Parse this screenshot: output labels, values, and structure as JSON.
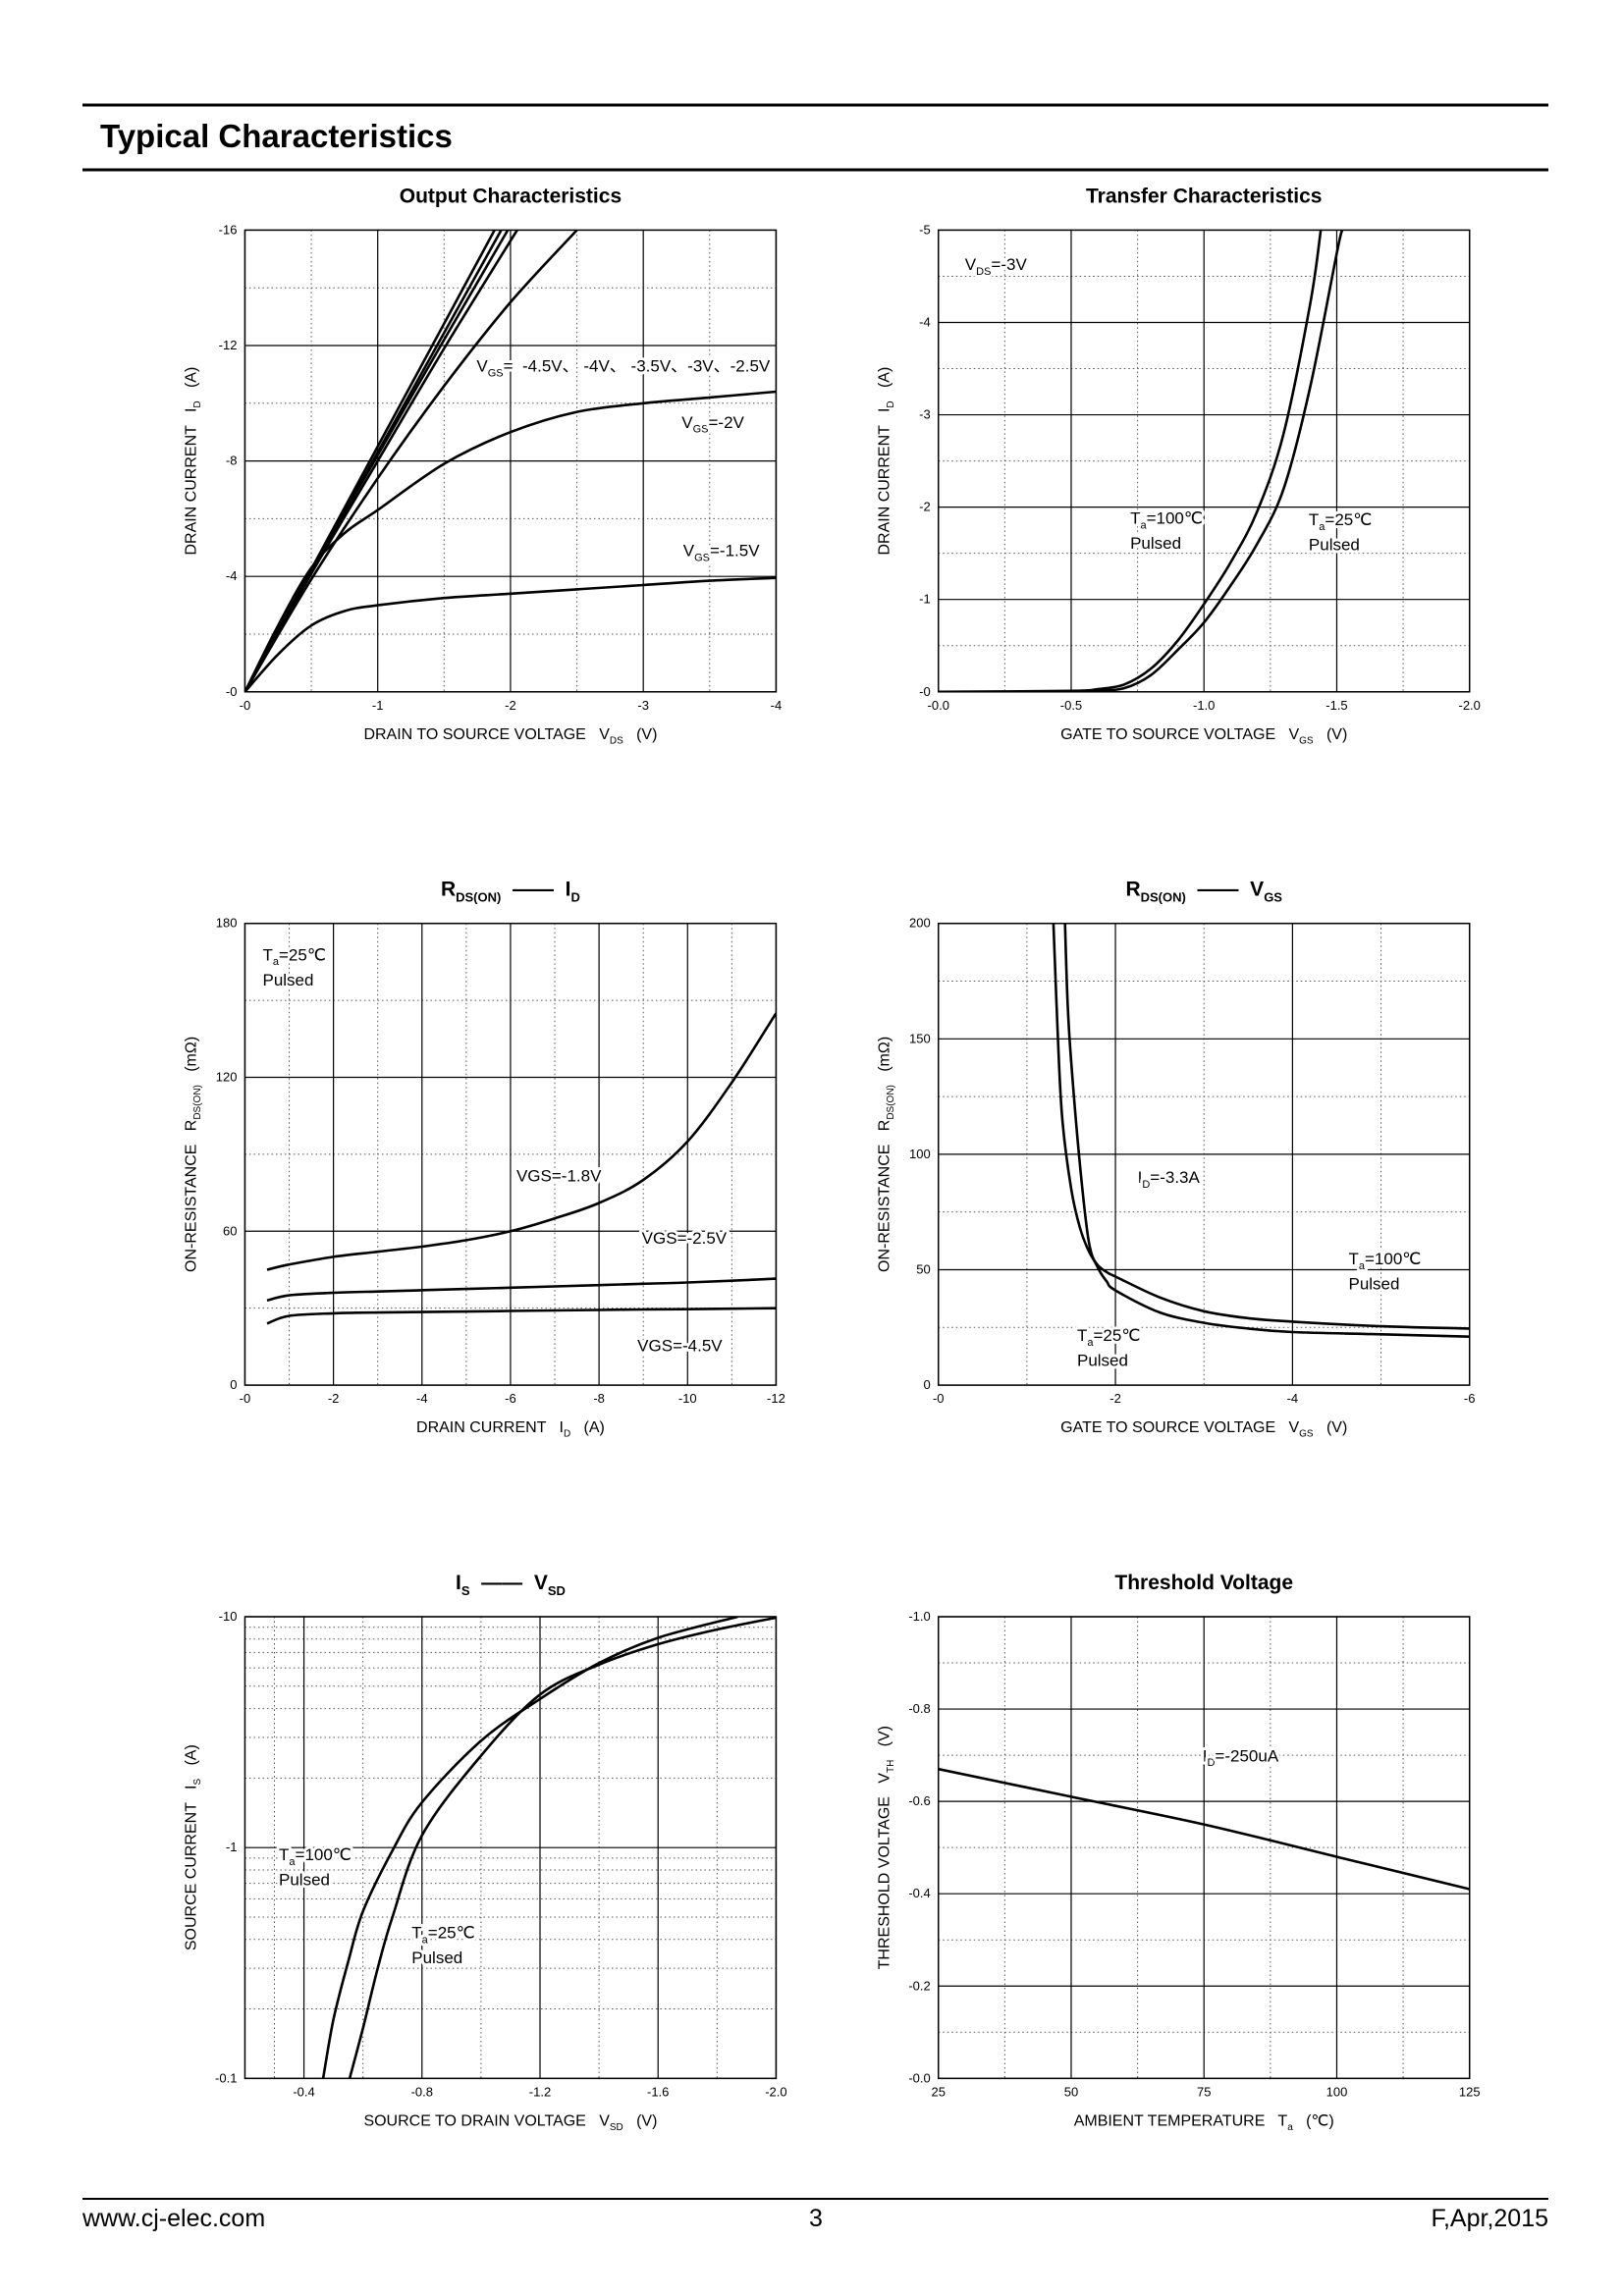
{
  "header": {
    "title": "Typical Characteristics"
  },
  "footer": {
    "left": "www.cj-elec.com",
    "center": "3",
    "right": "F,Apr,2015"
  },
  "chart_data": [
    {
      "type": "line",
      "title": [
        "Output Characteristics"
      ],
      "x_label": [
        "DRAIN TO SOURCE VOLTAGE   V",
        {
          "sub": "DS"
        },
        "   (V)"
      ],
      "y_label": [
        "DRAIN CURRENT   I",
        {
          "sub": "D"
        },
        "   (A)"
      ],
      "xlim": [
        0,
        -4
      ],
      "xticks": [
        {
          "value": 0,
          "label": "-0"
        },
        -1,
        -2,
        -3,
        -4
      ],
      "ylim": [
        0,
        -16
      ],
      "yticks": [
        {
          "value": 0,
          "label": "-0"
        },
        -4,
        -8,
        -12,
        -16
      ],
      "grid": true,
      "minor_grid": true,
      "series": [
        {
          "color": "#000000",
          "x": [
            0,
            -1,
            -1.88
          ],
          "values": [
            0,
            -8.5,
            -16
          ]
        },
        {
          "color": "#000000",
          "x": [
            0,
            -1,
            -1.93
          ],
          "values": [
            0,
            -8.3,
            -16
          ]
        },
        {
          "color": "#000000",
          "x": [
            0,
            -0.5,
            -1,
            -1.5,
            -1.98
          ],
          "values": [
            0,
            -4.2,
            -8.2,
            -12.2,
            -16
          ]
        },
        {
          "color": "#000000",
          "x": [
            0,
            -0.5,
            -1,
            -1.5,
            -2.05
          ],
          "values": [
            0,
            -4.1,
            -8.0,
            -11.9,
            -16
          ]
        },
        {
          "color": "#000000",
          "x": [
            0,
            -0.5,
            -1,
            -1.5,
            -2,
            -2.5
          ],
          "values": [
            0,
            -3.9,
            -7.4,
            -10.6,
            -13.5,
            -16
          ]
        },
        {
          "color": "#000000",
          "x": [
            0,
            -0.25,
            -0.5,
            -0.75,
            -1,
            -1.5,
            -2,
            -2.5,
            -3,
            -3.5,
            -4
          ],
          "values": [
            0,
            -2.3,
            -4.3,
            -5.5,
            -6.3,
            -7.9,
            -9.0,
            -9.7,
            -10.0,
            -10.2,
            -10.4
          ]
        },
        {
          "color": "#000000",
          "x": [
            0,
            -0.25,
            -0.5,
            -0.75,
            -1,
            -1.5,
            -2,
            -2.5,
            -3,
            -3.5,
            -4
          ],
          "values": [
            0,
            -1.3,
            -2.3,
            -2.8,
            -3.0,
            -3.25,
            -3.4,
            -3.55,
            -3.7,
            -3.85,
            -3.95
          ]
        }
      ],
      "annotations": [
        [
          [
            "V",
            {
              "sub": "GS"
            },
            "=  -4.5V、 -4V、 -3.5V、-3V、-2.5V"
          ]
        ],
        [
          [
            "V",
            {
              "sub": "GS"
            },
            "=-2V"
          ]
        ],
        [
          [
            "V",
            {
              "sub": "GS"
            },
            "=-1.5V"
          ]
        ]
      ]
    },
    {
      "type": "line",
      "title": [
        "Transfer Characteristics"
      ],
      "x_label": [
        "GATE TO SOURCE VOLTAGE   V",
        {
          "sub": "GS"
        },
        "   (V)"
      ],
      "y_label": [
        "DRAIN CURRENT   I",
        {
          "sub": "D"
        },
        "   (A)"
      ],
      "xlim": [
        0,
        -2
      ],
      "xticks": [
        {
          "value": 0,
          "label": "-0.0"
        },
        -0.5,
        {
          "value": -1,
          "label": "-1.0"
        },
        -1.5,
        {
          "value": -2,
          "label": "-2.0"
        }
      ],
      "ylim": [
        0,
        -5
      ],
      "yticks": [
        {
          "value": 0,
          "label": "-0"
        },
        -1,
        -2,
        -3,
        -4,
        -5
      ],
      "grid": true,
      "minor_grid": true,
      "series": [
        {
          "color": "#000000",
          "x": [
            0,
            -0.5,
            -0.6,
            -0.7,
            -0.8,
            -0.9,
            -1.0,
            -1.1,
            -1.2,
            -1.3,
            -1.4,
            -1.44
          ],
          "values": [
            0,
            -0.01,
            -0.03,
            -0.08,
            -0.25,
            -0.55,
            -0.95,
            -1.4,
            -1.95,
            -2.8,
            -4.2,
            -5
          ]
        },
        {
          "color": "#000000",
          "x": [
            0,
            -0.5,
            -0.6,
            -0.7,
            -0.8,
            -0.9,
            -1.0,
            -1.1,
            -1.2,
            -1.3,
            -1.4,
            -1.5,
            -1.52
          ],
          "values": [
            0,
            0,
            -0.01,
            -0.04,
            -0.18,
            -0.45,
            -0.75,
            -1.15,
            -1.6,
            -2.2,
            -3.3,
            -4.75,
            -5
          ]
        }
      ],
      "annotations": [
        [
          [
            "V",
            {
              "sub": "DS"
            },
            "=-3V"
          ]
        ],
        [
          [
            "T",
            {
              "sub": "a"
            },
            "=100℃"
          ],
          [
            "Pulsed"
          ]
        ],
        [
          [
            "T",
            {
              "sub": "a"
            },
            "=25℃"
          ],
          [
            "Pulsed"
          ]
        ]
      ]
    },
    {
      "type": "line",
      "title": [
        "R",
        {
          "sub": "DS(ON)"
        },
        "  ——  I",
        {
          "sub": "D"
        }
      ],
      "x_label": [
        "DRAIN CURRENT   I",
        {
          "sub": "D"
        },
        "   (A)"
      ],
      "y_label": [
        "ON-RESISTANCE   R",
        {
          "sub": "DS(ON)"
        },
        "   (mΩ)"
      ],
      "xlim": [
        0,
        -12
      ],
      "xticks": [
        {
          "value": 0,
          "label": "-0"
        },
        -2,
        -4,
        -6,
        -8,
        -10,
        -12
      ],
      "ylim": [
        0,
        180
      ],
      "yticks": [
        0,
        60,
        120,
        180
      ],
      "grid": true,
      "minor_grid": true,
      "series": [
        {
          "color": "#000000",
          "x": [
            -0.5,
            -1,
            -2,
            -3,
            -4,
            -5,
            -6,
            -7,
            -8,
            -9,
            -10,
            -11,
            -12
          ],
          "values": [
            45,
            47,
            50,
            52,
            54,
            56.5,
            60,
            65,
            71,
            80,
            95,
            118,
            145
          ]
        },
        {
          "color": "#000000",
          "x": [
            -0.5,
            -1,
            -2,
            -3,
            -4,
            -5,
            -6,
            -7,
            -8,
            -9,
            -10,
            -11,
            -12
          ],
          "values": [
            33,
            35,
            36,
            36.5,
            37,
            37.5,
            38,
            38.5,
            39,
            39.5,
            40,
            40.7,
            41.5
          ]
        },
        {
          "color": "#000000",
          "x": [
            -0.5,
            -1,
            -2,
            -3,
            -4,
            -5,
            -6,
            -7,
            -8,
            -9,
            -10,
            -11,
            -12
          ],
          "values": [
            24,
            27,
            28,
            28.3,
            28.5,
            28.7,
            28.9,
            29.1,
            29.3,
            29.5,
            29.6,
            29.8,
            30
          ]
        }
      ],
      "annotations": [
        [
          [
            "T",
            {
              "sub": "a"
            },
            "=25℃"
          ],
          [
            "Pulsed"
          ]
        ],
        [
          [
            "VGS=-1.8V"
          ]
        ],
        [
          [
            "VGS=-2.5V"
          ]
        ],
        [
          [
            "VGS=-4.5V"
          ]
        ]
      ]
    },
    {
      "type": "line",
      "title": [
        "R",
        {
          "sub": "DS(ON)"
        },
        "  ——  V",
        {
          "sub": "GS"
        }
      ],
      "x_label": [
        "GATE TO SOURCE VOLTAGE   V",
        {
          "sub": "GS"
        },
        "   (V)"
      ],
      "y_label": [
        "ON-RESISTANCE   R",
        {
          "sub": "DS(ON)"
        },
        "   (mΩ)"
      ],
      "xlim": [
        0,
        -6
      ],
      "xticks": [
        {
          "value": 0,
          "label": "-0"
        },
        -2,
        -4,
        -6
      ],
      "ylim": [
        0,
        200
      ],
      "yticks": [
        0,
        50,
        100,
        150,
        200
      ],
      "grid": true,
      "minor_grid": true,
      "series": [
        {
          "color": "#000000",
          "x": [
            -1.3,
            -1.35,
            -1.4,
            -1.5,
            -1.6,
            -1.7,
            -1.8,
            -1.9,
            -2.0,
            -2.5,
            -3,
            -3.5,
            -4,
            -5,
            -6
          ],
          "values": [
            200,
            150,
            115,
            85,
            68,
            58,
            52,
            49,
            47,
            38,
            32,
            29,
            27.5,
            25.5,
            24.5
          ]
        },
        {
          "color": "#000000",
          "x": [
            -1.43,
            -1.46,
            -1.5,
            -1.6,
            -1.7,
            -1.8,
            -1.9,
            -2.0,
            -2.5,
            -3,
            -3.5,
            -4,
            -5,
            -6
          ],
          "values": [
            200,
            165,
            140,
            95,
            62,
            51,
            45,
            41,
            31.5,
            27,
            24.5,
            23,
            22,
            21
          ]
        }
      ],
      "annotations": [
        [
          [
            "I",
            {
              "sub": "D"
            },
            "=-3.3A"
          ]
        ],
        [
          [
            "T",
            {
              "sub": "a"
            },
            "=100℃"
          ],
          [
            "Pulsed"
          ]
        ],
        [
          [
            "T",
            {
              "sub": "a"
            },
            "=25℃"
          ],
          [
            "Pulsed"
          ]
        ]
      ]
    },
    {
      "type": "line",
      "title": [
        "I",
        {
          "sub": "S"
        },
        "  ——  V",
        {
          "sub": "SD"
        }
      ],
      "x_label": [
        "SOURCE TO DRAIN VOLTAGE   V",
        {
          "sub": "SD"
        },
        "   (V)"
      ],
      "y_label": [
        "SOURCE CURRENT   I",
        {
          "sub": "S"
        },
        "   (A)"
      ],
      "xlim": [
        -0.2,
        -2
      ],
      "xticks": [
        -0.4,
        -0.8,
        -1.2,
        -1.6,
        {
          "value": -2,
          "label": "-2.0"
        }
      ],
      "ylim": [
        -0.1,
        -10
      ],
      "yticks": [
        -0.1,
        -1,
        -10
      ],
      "yscale": "log",
      "grid": true,
      "minor_grid": true,
      "series": [
        {
          "color": "#000000",
          "x": [
            -0.465,
            -0.5,
            -0.55,
            -0.6,
            -0.7,
            -0.8,
            -1.0,
            -1.2,
            -1.4,
            -1.6,
            -1.87
          ],
          "values": [
            -0.1,
            -0.18,
            -0.32,
            -0.53,
            -0.97,
            -1.57,
            -2.9,
            -4.4,
            -6.3,
            -8.1,
            -10
          ]
        },
        {
          "color": "#000000",
          "x": [
            -0.555,
            -0.6,
            -0.65,
            -0.7,
            -0.8,
            -1.0,
            -1.2,
            -1.4,
            -1.6,
            -1.8,
            -2.0
          ],
          "values": [
            -0.1,
            -0.165,
            -0.3,
            -0.5,
            -1.13,
            -2.5,
            -4.6,
            -6.2,
            -7.6,
            -8.8,
            -9.9
          ]
        }
      ],
      "annotations": [
        [
          [
            "T",
            {
              "sub": "a"
            },
            "=100℃"
          ],
          [
            "Pulsed"
          ]
        ],
        [
          [
            "T",
            {
              "sub": "a"
            },
            "=25℃"
          ],
          [
            "Pulsed"
          ]
        ]
      ]
    },
    {
      "type": "line",
      "title": [
        "Threshold Voltage"
      ],
      "x_label": [
        "AMBIENT TEMPERATURE   T",
        {
          "sub": "a"
        },
        "   (℃)"
      ],
      "y_label": [
        "THRESHOLD VOLTAGE   V",
        {
          "sub": "TH"
        },
        "   (V)"
      ],
      "xlim": [
        25,
        125
      ],
      "xticks": [
        25,
        50,
        75,
        100,
        125
      ],
      "ylim": [
        0,
        -1
      ],
      "yticks": [
        {
          "value": 0,
          "label": "-0.0"
        },
        -0.2,
        -0.4,
        -0.6,
        -0.8,
        {
          "value": -1,
          "label": "-1.0"
        }
      ],
      "grid": true,
      "minor_grid": true,
      "series": [
        {
          "color": "#000000",
          "x": [
            25,
            50,
            75,
            100,
            125
          ],
          "values": [
            -0.67,
            -0.61,
            -0.55,
            -0.48,
            -0.41
          ]
        }
      ],
      "annotations": [
        [
          [
            "I",
            {
              "sub": "D"
            },
            "=-250uA"
          ]
        ]
      ]
    }
  ]
}
